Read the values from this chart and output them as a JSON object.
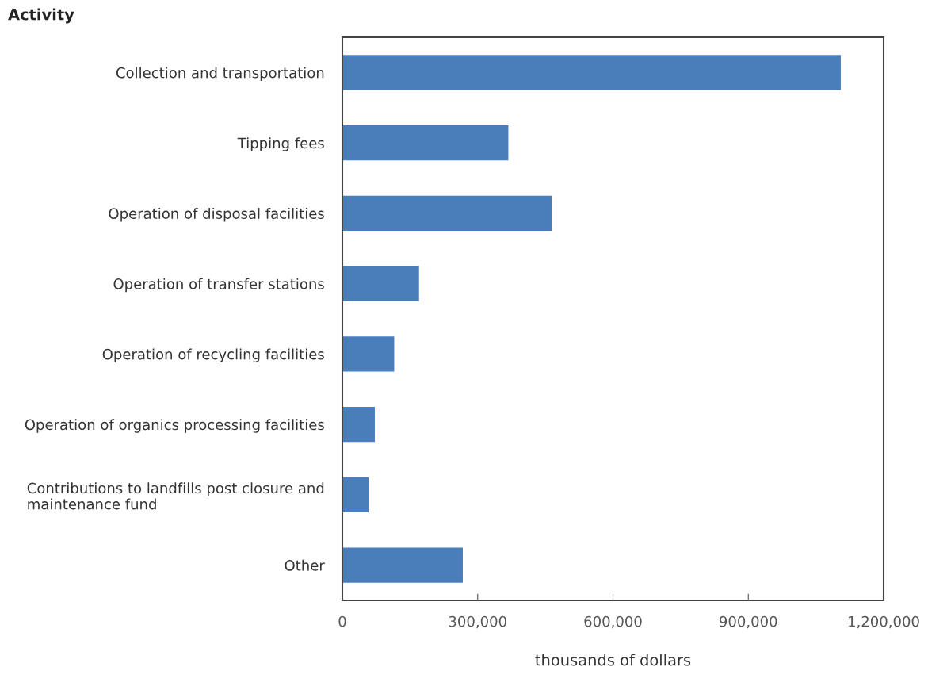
{
  "chart_data": {
    "type": "bar",
    "orientation": "horizontal",
    "ylabel": "Activity",
    "xlabel": "thousands of dollars",
    "categories": [
      "Collection and transportation",
      "Tipping fees",
      "Operation of disposal facilities",
      "Operation of transfer stations",
      "Operation of recycling facilities",
      "Operation of organics processing facilities",
      "Contributions to landfills post closure and\nmaintenance fund",
      "Other"
    ],
    "values": [
      1105000,
      368000,
      464000,
      170000,
      115000,
      72000,
      58000,
      267000
    ],
    "color": "#4a7ebb",
    "xlim": [
      0,
      1200000
    ],
    "xticks": [
      {
        "value": 0,
        "label": "0"
      },
      {
        "value": 300000,
        "label": "300,000"
      },
      {
        "value": 600000,
        "label": "600,000"
      },
      {
        "value": 900000,
        "label": "900,000"
      },
      {
        "value": 1200000,
        "label": "1,200,000"
      }
    ],
    "grid": false,
    "legend": false
  }
}
